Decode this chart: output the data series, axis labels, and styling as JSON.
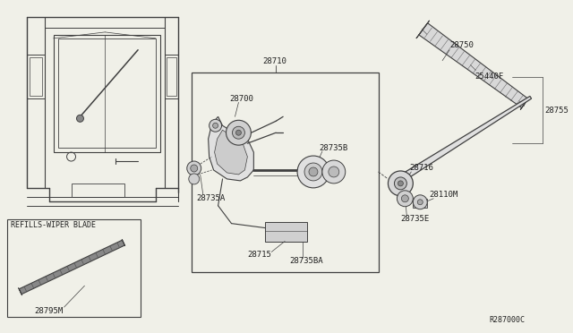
{
  "bg_color": "#f0f0e8",
  "line_color": "#404040",
  "text_color": "#202020",
  "font_size": 6.5,
  "diagram_code": "R287000C",
  "refill_label": "REFILLS-WIPER BLADE",
  "parts": [
    "28710",
    "28700",
    "28735A",
    "28735B",
    "28715",
    "28735BA",
    "28716",
    "28735E",
    "28110M",
    "28750",
    "25440F",
    "28755",
    "28795M"
  ]
}
